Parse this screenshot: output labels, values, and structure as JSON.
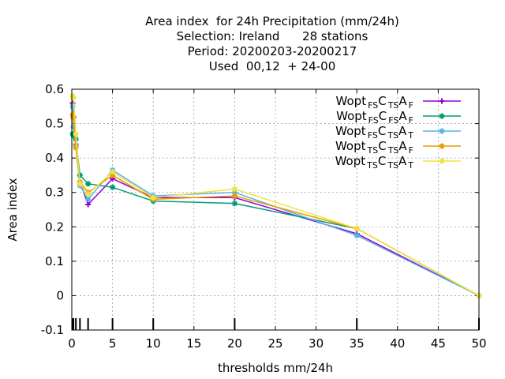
{
  "chart_data": {
    "type": "line",
    "title_lines": [
      "Area index  for 24h Precipitation (mm/24h)",
      "Selection: Ireland      28 stations",
      "Period: 20200203-20200217",
      "Used  00,12  + 24-00"
    ],
    "xlabel": "thresholds mm/24h",
    "ylabel": "Area index",
    "xlim": [
      0,
      50
    ],
    "ylim": [
      -0.1,
      0.6
    ],
    "xticks": [
      0,
      5,
      10,
      15,
      20,
      25,
      30,
      35,
      40,
      45,
      50
    ],
    "yticks": [
      -0.1,
      0,
      0.1,
      0.2,
      0.3,
      0.4,
      0.5,
      0.6
    ],
    "grid": true,
    "legend_position": "top-right",
    "threshold_marks": [
      0.1,
      0.2,
      0.5,
      1,
      2,
      5,
      10,
      20,
      35,
      50
    ],
    "series": [
      {
        "name_parts": [
          "Wopt",
          "FS",
          "C",
          "TS",
          "A",
          "F"
        ],
        "color": "#9400d3",
        "marker": "plus",
        "x": [
          0.1,
          0.2,
          0.5,
          1,
          2,
          5,
          10,
          20,
          35,
          50
        ],
        "y": [
          0.56,
          0.52,
          0.44,
          0.33,
          0.265,
          0.34,
          0.285,
          0.285,
          0.18,
          0.0
        ]
      },
      {
        "name_parts": [
          "Wopt",
          "FS",
          "C",
          "FS",
          "A",
          "F"
        ],
        "color": "#009e73",
        "marker": "star",
        "x": [
          0.1,
          0.2,
          0.5,
          1,
          2,
          5,
          10,
          20,
          35,
          50
        ],
        "y": [
          0.47,
          0.465,
          0.455,
          0.35,
          0.325,
          0.315,
          0.275,
          0.268,
          0.195,
          0.0
        ]
      },
      {
        "name_parts": [
          "Wopt",
          "FS",
          "C",
          "TS",
          "A",
          "T"
        ],
        "color": "#56b4e9",
        "marker": "star",
        "x": [
          0.1,
          0.2,
          0.5,
          1,
          2,
          5,
          10,
          20,
          35,
          50
        ],
        "y": [
          0.55,
          0.49,
          0.435,
          0.32,
          0.28,
          0.365,
          0.29,
          0.3,
          0.175,
          0.0
        ]
      },
      {
        "name_parts": [
          "Wopt",
          "TS",
          "C",
          "TS",
          "A",
          "F"
        ],
        "color": "#e69f00",
        "marker": "star",
        "x": [
          0.1,
          0.2,
          0.5,
          1,
          2,
          5,
          10,
          20,
          35,
          50
        ],
        "y": [
          0.525,
          0.515,
          0.43,
          0.33,
          0.3,
          0.35,
          0.28,
          0.29,
          0.195,
          0.0
        ]
      },
      {
        "name_parts": [
          "Wopt",
          "TS",
          "C",
          "TS",
          "A",
          "T"
        ],
        "color": "#f0e442",
        "marker": "star",
        "x": [
          0.1,
          0.2,
          0.5,
          1,
          2,
          5,
          10,
          20,
          35,
          50
        ],
        "y": [
          0.58,
          0.575,
          0.47,
          0.325,
          0.295,
          0.36,
          0.285,
          0.31,
          0.195,
          0.0
        ]
      }
    ]
  }
}
